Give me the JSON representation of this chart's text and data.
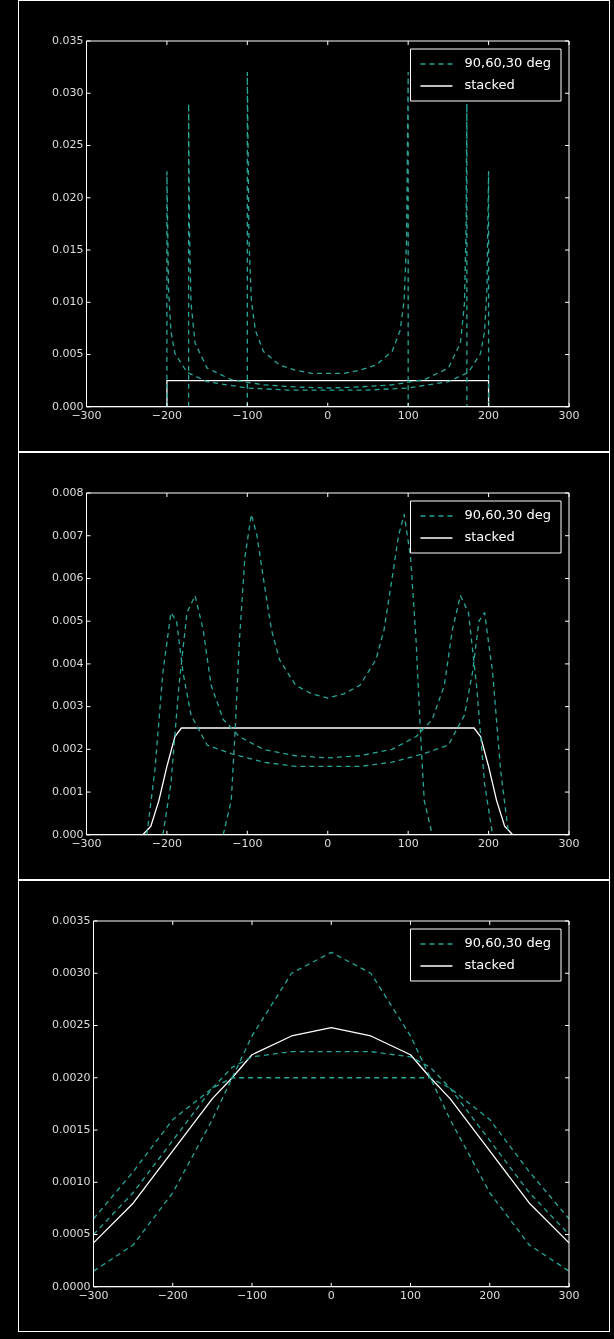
{
  "chart_data": [
    {
      "type": "line",
      "legend": "top right",
      "xlim": [
        -300,
        300
      ],
      "xticks": [
        {
          "value": -300,
          "label": "−300"
        },
        {
          "value": -200,
          "label": "−200"
        },
        {
          "value": -100,
          "label": "−100"
        },
        0,
        100,
        200,
        300
      ],
      "ylim": [
        0,
        0.035
      ],
      "yticks": [
        {
          "value": 0,
          "label": "0.000"
        },
        0.005,
        {
          "value": 0.01,
          "label": "0.010"
        },
        0.015,
        {
          "value": 0.02,
          "label": "0.020"
        },
        0.025,
        {
          "value": 0.03,
          "label": "0.030"
        },
        0.035
      ],
      "series": [
        {
          "name": "90,60,30 deg",
          "color": "#27a596",
          "line_style": "dashed",
          "x": [
            -100,
            -100,
            -98,
            -95,
            -90,
            -80,
            -60,
            -40,
            -20,
            0,
            20,
            40,
            60,
            80,
            90,
            95,
            98,
            100,
            100
          ],
          "values": [
            0,
            0.032,
            0.016,
            0.0102,
            0.0073,
            0.0053,
            0.004,
            0.0035,
            0.0032,
            0.0032,
            0.0032,
            0.0035,
            0.004,
            0.0053,
            0.0073,
            0.0102,
            0.016,
            0.032,
            0
          ]
        },
        {
          "color": "#27a596",
          "line_style": "dashed",
          "x": [
            -173,
            -173,
            -172,
            -170,
            -165,
            -150,
            -120,
            -80,
            -40,
            0,
            40,
            80,
            120,
            150,
            165,
            170,
            172,
            173,
            173
          ],
          "values": [
            0,
            0.029,
            0.0171,
            0.0099,
            0.0061,
            0.0037,
            0.0026,
            0.0021,
            0.0019,
            0.0018,
            0.0019,
            0.0021,
            0.0026,
            0.0037,
            0.0061,
            0.0099,
            0.0171,
            0.029,
            0
          ]
        },
        {
          "color": "#27a596",
          "line_style": "dashed",
          "x": [
            -200,
            -200,
            -198,
            -195,
            -190,
            -175,
            -150,
            -100,
            -50,
            0,
            50,
            100,
            150,
            175,
            190,
            195,
            198,
            200,
            200
          ],
          "values": [
            0,
            0.0225,
            0.0113,
            0.0072,
            0.0051,
            0.0033,
            0.0024,
            0.0018,
            0.0016,
            0.0016,
            0.0016,
            0.0018,
            0.0024,
            0.0033,
            0.0051,
            0.0072,
            0.0113,
            0.0225,
            0
          ]
        },
        {
          "name": "stacked",
          "color": "#ffffff",
          "line_style": "solid",
          "x": [
            -200,
            -200,
            200,
            200
          ],
          "values": [
            0,
            0.0025,
            0.0025,
            0
          ]
        }
      ]
    },
    {
      "type": "line",
      "legend": "top right",
      "xlim": [
        -300,
        300
      ],
      "xticks": [
        {
          "value": -300,
          "label": "−300"
        },
        {
          "value": -200,
          "label": "−200"
        },
        {
          "value": -100,
          "label": "−100"
        },
        0,
        100,
        200,
        300
      ],
      "ylim": [
        0,
        0.008
      ],
      "yticks": [
        {
          "value": 0,
          "label": "0.000"
        },
        0.001,
        0.002,
        0.003,
        0.004,
        0.005,
        0.006,
        0.007,
        {
          "value": 0.008,
          "label": "0.008"
        }
      ],
      "series": [
        {
          "name": "90,60,30 deg",
          "color": "#27a596",
          "line_style": "dashed",
          "x": [
            -130,
            -120,
            -115,
            -110,
            -103,
            -95,
            -88,
            -80,
            -70,
            -60,
            -40,
            -20,
            0,
            20,
            40,
            60,
            70,
            80,
            88,
            95,
            103,
            110,
            115,
            120,
            130
          ],
          "values": [
            0,
            0.0008,
            0.0025,
            0.0045,
            0.0065,
            0.0075,
            0.007,
            0.006,
            0.0048,
            0.0041,
            0.0035,
            0.0033,
            0.0032,
            0.0033,
            0.0035,
            0.0041,
            0.0048,
            0.006,
            0.007,
            0.0075,
            0.0065,
            0.0045,
            0.0025,
            0.0008,
            0
          ]
        },
        {
          "color": "#27a596",
          "line_style": "dashed",
          "x": [
            -205,
            -195,
            -185,
            -175,
            -165,
            -155,
            -145,
            -130,
            -110,
            -80,
            -40,
            0,
            40,
            80,
            110,
            130,
            145,
            155,
            165,
            175,
            185,
            195,
            205
          ],
          "values": [
            0,
            0.0012,
            0.0035,
            0.0052,
            0.0056,
            0.0048,
            0.0035,
            0.0027,
            0.0023,
            0.002,
            0.00185,
            0.0018,
            0.00185,
            0.002,
            0.0023,
            0.0027,
            0.0035,
            0.0048,
            0.0056,
            0.0052,
            0.0035,
            0.0012,
            0
          ]
        },
        {
          "color": "#27a596",
          "line_style": "dashed",
          "x": [
            -225,
            -215,
            -205,
            -195,
            -188,
            -180,
            -170,
            -150,
            -120,
            -80,
            -40,
            0,
            40,
            80,
            120,
            150,
            170,
            180,
            188,
            195,
            205,
            215,
            225
          ],
          "values": [
            0,
            0.0015,
            0.0038,
            0.0052,
            0.005,
            0.0038,
            0.0028,
            0.0021,
            0.0019,
            0.0017,
            0.0016,
            0.0016,
            0.0016,
            0.0017,
            0.0019,
            0.0021,
            0.0028,
            0.0038,
            0.005,
            0.0052,
            0.0038,
            0.0015,
            0
          ]
        },
        {
          "name": "stacked",
          "color": "#ffffff",
          "line_style": "solid",
          "x": [
            -230,
            -220,
            -210,
            -200,
            -190,
            -182,
            182,
            190,
            200,
            210,
            220,
            230
          ],
          "values": [
            0,
            0.0002,
            0.0008,
            0.0016,
            0.0023,
            0.0025,
            0.0025,
            0.0023,
            0.0016,
            0.0008,
            0.0002,
            0
          ]
        }
      ]
    },
    {
      "type": "line",
      "legend": "top right",
      "xlim": [
        -300,
        300
      ],
      "xticks": [
        {
          "value": -300,
          "label": "−300"
        },
        {
          "value": -200,
          "label": "−200"
        },
        {
          "value": -100,
          "label": "−100"
        },
        0,
        100,
        200,
        300
      ],
      "ylim": [
        0,
        0.0035
      ],
      "yticks": [
        {
          "value": 0,
          "label": "0.0000"
        },
        0.0005,
        {
          "value": 0.001,
          "label": "0.0010"
        },
        0.0015,
        {
          "value": 0.002,
          "label": "0.0020"
        },
        0.0025,
        {
          "value": 0.003,
          "label": "0.0030"
        },
        0.0035
      ],
      "series": [
        {
          "name": "90,60,30 deg",
          "color": "#27a596",
          "line_style": "dashed",
          "x": [
            -300,
            -250,
            -200,
            -150,
            -125,
            -100,
            -50,
            0,
            50,
            100,
            125,
            150,
            200,
            250,
            300
          ],
          "values": [
            0.00015,
            0.0004,
            0.0009,
            0.0016,
            0.002,
            0.0024,
            0.003,
            0.0032,
            0.003,
            0.0024,
            0.002,
            0.0016,
            0.0009,
            0.0004,
            0.00015
          ]
        },
        {
          "color": "#27a596",
          "line_style": "dashed",
          "x": [
            -300,
            -250,
            -200,
            -150,
            -125,
            -100,
            -50,
            0,
            50,
            100,
            125,
            150,
            200,
            250,
            300
          ],
          "values": [
            0.0005,
            0.0009,
            0.0014,
            0.0019,
            0.0021,
            0.0022,
            0.00225,
            0.00225,
            0.00225,
            0.0022,
            0.0021,
            0.0019,
            0.0014,
            0.0009,
            0.0005
          ]
        },
        {
          "color": "#27a596",
          "line_style": "dashed",
          "x": [
            -300,
            -250,
            -200,
            -150,
            -125,
            -100,
            -50,
            0,
            50,
            100,
            125,
            150,
            200,
            250,
            300
          ],
          "values": [
            0.00065,
            0.0011,
            0.0016,
            0.0019,
            0.002,
            0.002,
            0.002,
            0.002,
            0.002,
            0.002,
            0.002,
            0.0019,
            0.0016,
            0.0011,
            0.00065
          ]
        },
        {
          "name": "stacked",
          "color": "#ffffff",
          "line_style": "solid",
          "x": [
            -300,
            -250,
            -200,
            -150,
            -125,
            -100,
            -50,
            0,
            50,
            100,
            125,
            150,
            200,
            250,
            300
          ],
          "values": [
            0.00042,
            0.0008,
            0.0013,
            0.0018,
            0.002,
            0.00222,
            0.0024,
            0.00248,
            0.0024,
            0.00222,
            0.002,
            0.0018,
            0.0013,
            0.0008,
            0.00042
          ]
        }
      ]
    }
  ]
}
